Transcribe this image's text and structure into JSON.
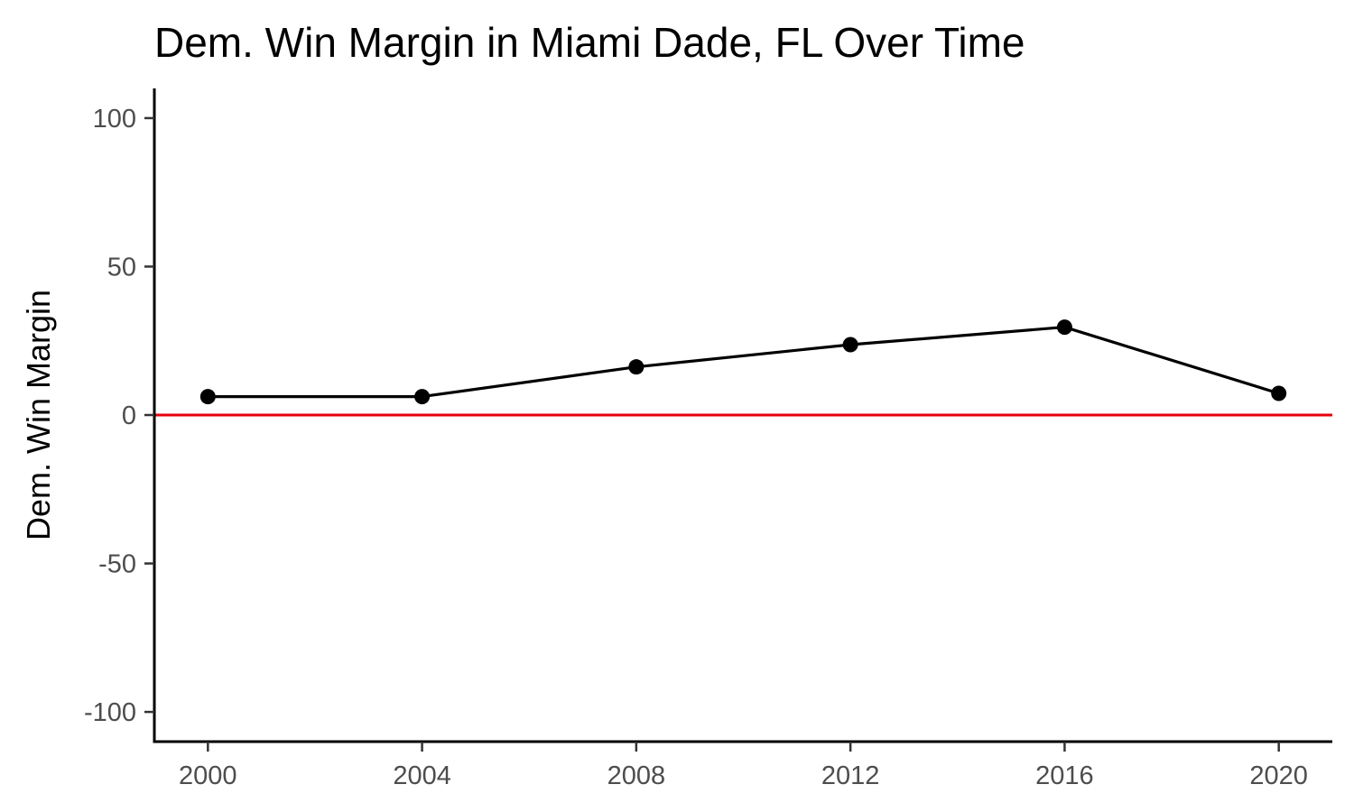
{
  "chart_data": {
    "type": "line",
    "title": "Dem. Win Margin in Miami Dade, FL Over Time",
    "xlabel": "",
    "ylabel": "Dem. Win Margin",
    "x": [
      2000,
      2004,
      2008,
      2012,
      2016,
      2020
    ],
    "series": [
      {
        "name": "Dem. Win Margin",
        "values": [
          6.2,
          6.2,
          16.2,
          23.7,
          29.6,
          7.3
        ],
        "color": "#000000"
      }
    ],
    "xlim": [
      1999,
      2021
    ],
    "ylim": [
      -110,
      110
    ],
    "x_ticks": [
      2000,
      2004,
      2008,
      2012,
      2016,
      2020
    ],
    "x_tick_labels": [
      "2000",
      "2004",
      "2008",
      "2012",
      "2016",
      "2020"
    ],
    "y_ticks": [
      -100,
      -50,
      0,
      50,
      100
    ],
    "y_tick_labels": [
      "-100",
      "-50",
      "0",
      "50",
      "100"
    ],
    "reference_line": {
      "value": 0,
      "color": "#e8000b"
    },
    "grid": false,
    "legend": "none"
  }
}
